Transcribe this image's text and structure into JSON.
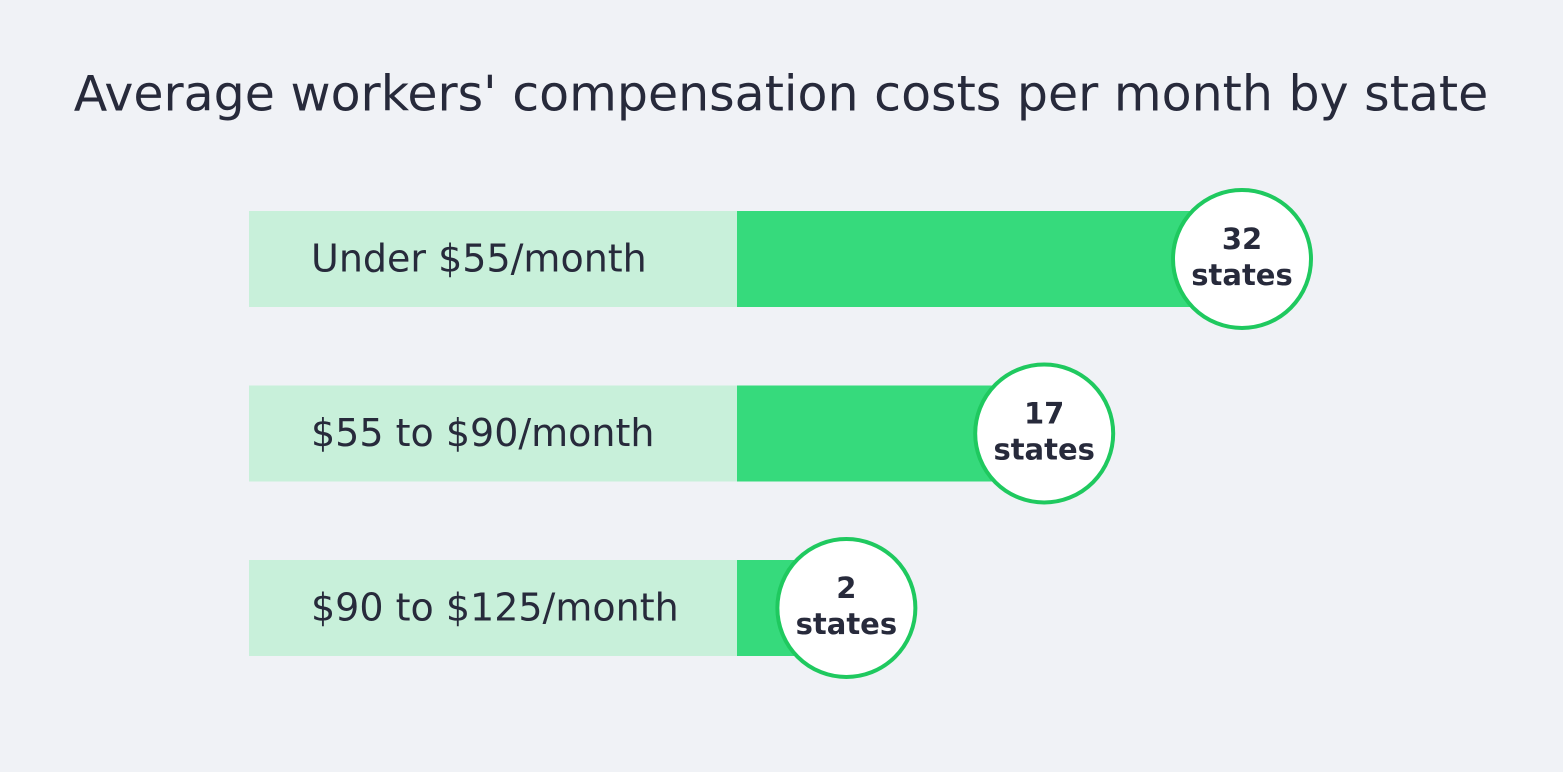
{
  "chart_data": {
    "type": "bar",
    "title": "Average workers' compensation costs per month by state",
    "categories": [
      "Under $55/month",
      "$55 to $90/month",
      "$90 to $125/month"
    ],
    "values": [
      32,
      17,
      2
    ],
    "value_labels": [
      "32 states",
      "17 states",
      "2 states"
    ],
    "color": "#36da7c"
  }
}
